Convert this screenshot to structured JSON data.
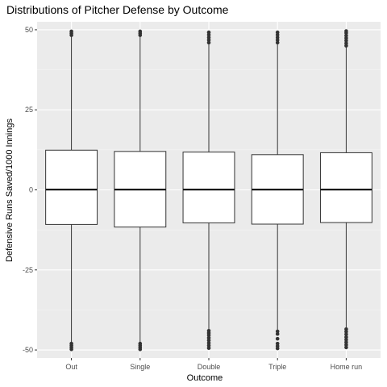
{
  "chart_data": {
    "type": "boxplot",
    "title": "Distributions of Pitcher Defense by Outcome",
    "xlabel": "Outcome",
    "ylabel": "Defensive Runs Saved/1000 Innings",
    "categories": [
      "Out",
      "Single",
      "Double",
      "Triple",
      "Home run"
    ],
    "ylim": [
      -52.5,
      52.5
    ],
    "yticks": [
      -50,
      -25,
      0,
      25,
      50
    ],
    "boxes": [
      {
        "category": "Out",
        "q1": -10.8,
        "median": 0.1,
        "q3": 12.4,
        "whisker_low": -47.5,
        "whisker_high": 47.8,
        "outliers_low": [
          -48.0,
          -48.6,
          -49.2,
          -49.8
        ],
        "outliers_high": [
          48.3,
          48.9,
          49.5
        ]
      },
      {
        "category": "Single",
        "q1": -11.6,
        "median": 0.1,
        "q3": 12.0,
        "whisker_low": -47.5,
        "whisker_high": 47.8,
        "outliers_low": [
          -48.0,
          -48.6,
          -49.2,
          -49.8
        ],
        "outliers_high": [
          48.3,
          48.9,
          49.5
        ]
      },
      {
        "category": "Double",
        "q1": -10.3,
        "median": 0.1,
        "q3": 11.8,
        "whisker_low": -43.5,
        "whisker_high": 45.5,
        "outliers_low": [
          -44.0,
          -44.7,
          -45.4,
          -46.2,
          -47.0,
          -47.8,
          -48.6,
          -49.4
        ],
        "outliers_high": [
          46.0,
          46.8,
          47.6,
          48.4,
          49.2
        ]
      },
      {
        "category": "Triple",
        "q1": -10.7,
        "median": 0.1,
        "q3": 11.0,
        "whisker_low": -43.7,
        "whisker_high": 45.5,
        "outliers_low": [
          -44.2,
          -45.0,
          -46.5,
          -48.0,
          -48.8,
          -49.5
        ],
        "outliers_high": [
          46.0,
          46.8,
          47.6,
          48.4,
          49.2
        ]
      },
      {
        "category": "Home run",
        "q1": -10.2,
        "median": 0.1,
        "q3": 11.6,
        "whisker_low": -43.0,
        "whisker_high": 44.5,
        "outliers_low": [
          -43.5,
          -44.3,
          -45.1,
          -46.0,
          -46.8,
          -47.6,
          -48.4,
          -49.2
        ],
        "outliers_high": [
          45.0,
          45.8,
          46.6,
          47.4,
          48.2,
          49.0,
          49.6
        ]
      }
    ],
    "grid": true,
    "legend": "none"
  }
}
